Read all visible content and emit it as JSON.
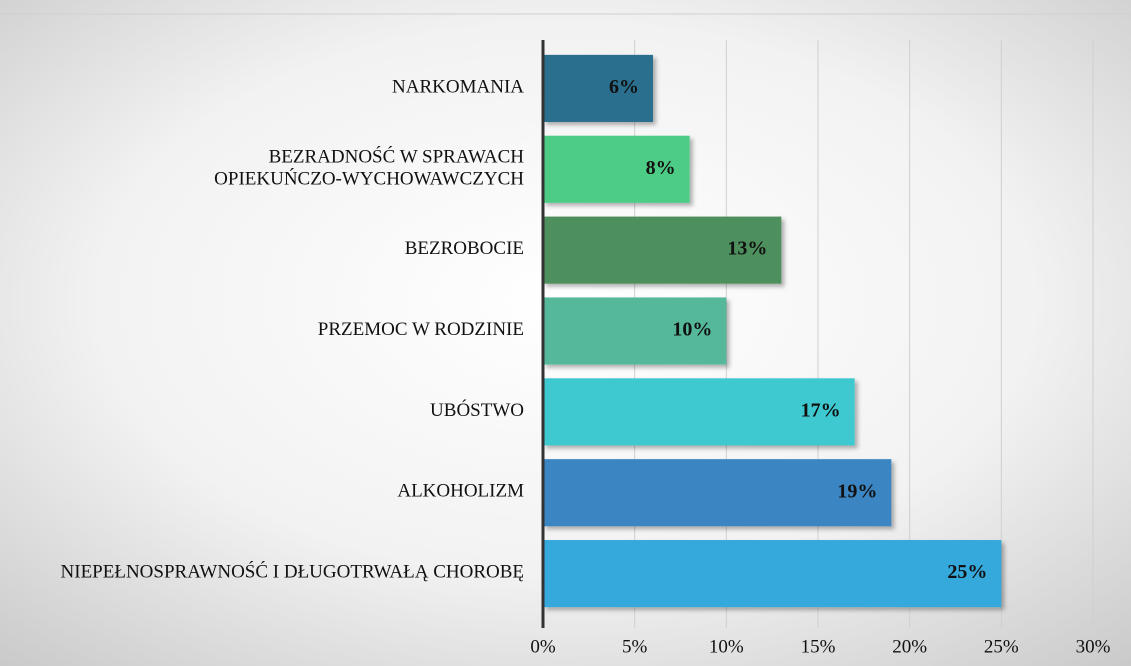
{
  "chart_data": {
    "type": "barh",
    "categories": [
      "NARKOMANIA",
      "BEZRADNOŚĆ W SPRAWACH OPIEKUŃCZO-WYCHOWAWCZYCH",
      "BEZROBOCIE",
      "PRZEMOC W RODZINIE",
      "UBÓSTWO",
      "ALKOHOLIZM",
      "NIEPEŁNOSPRAWNOŚĆ I DŁUGOTRWAŁĄ CHOROBĘ"
    ],
    "values": [
      6,
      8,
      13,
      10,
      17,
      19,
      25
    ],
    "value_labels": [
      "6%",
      "8%",
      "13%",
      "10%",
      "17%",
      "19%",
      "25%"
    ],
    "colors": [
      "#2a6f8e",
      "#4dcc85",
      "#4d8f5d",
      "#55b89a",
      "#3cc9cf",
      "#3a85c2",
      "#36a9dc"
    ],
    "xlim": [
      0,
      30
    ],
    "xticks": [
      {
        "value": 0,
        "label": "0%"
      },
      {
        "value": 5,
        "label": "5%"
      },
      {
        "value": 10,
        "label": "10%"
      },
      {
        "value": 15,
        "label": "15%"
      },
      {
        "value": 20,
        "label": "20%"
      },
      {
        "value": 25,
        "label": "25%"
      },
      {
        "value": 30,
        "label": "30%"
      }
    ],
    "grid": true
  }
}
